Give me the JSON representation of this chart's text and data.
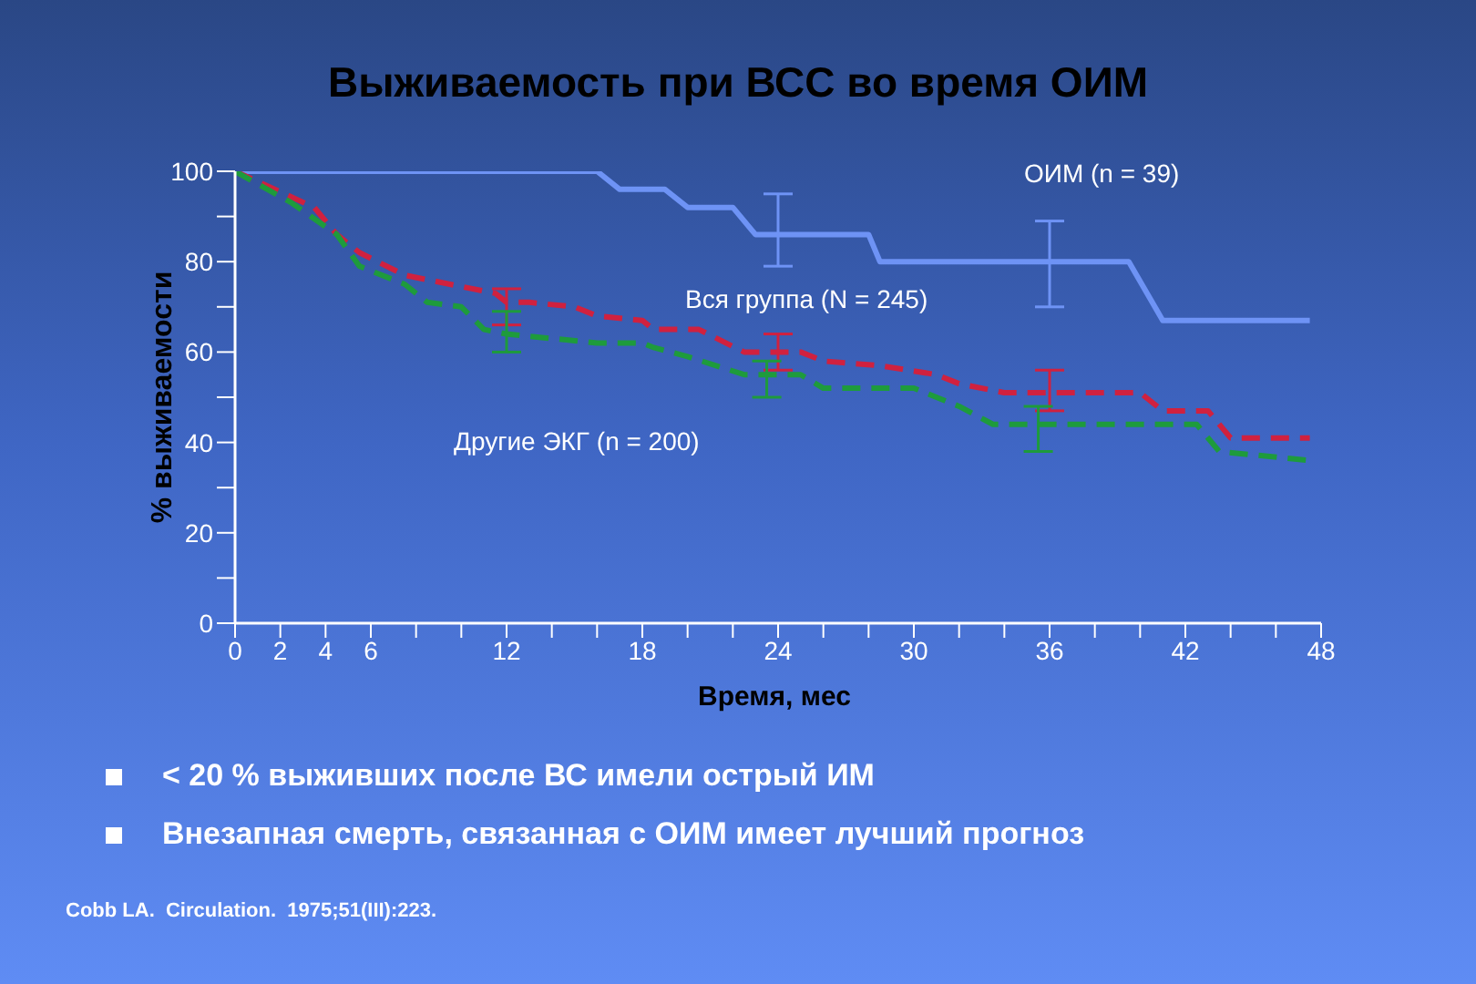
{
  "chart_data": {
    "type": "line",
    "title": "Выживаемость при ВСС во время ОИМ",
    "xlabel": "Время, мес",
    "ylabel": "% выживаемости",
    "xlim": [
      0,
      48
    ],
    "ylim": [
      0,
      100
    ],
    "xticks": [
      0,
      2,
      4,
      6,
      {
        "value": 8,
        "label": null
      },
      {
        "value": 10,
        "label": null
      },
      12,
      {
        "value": 14,
        "label": null
      },
      {
        "value": 16,
        "label": null
      },
      18,
      {
        "value": 20,
        "label": null
      },
      {
        "value": 22,
        "label": null
      },
      24,
      {
        "value": 26,
        "label": null
      },
      {
        "value": 28,
        "label": null
      },
      30,
      {
        "value": 32,
        "label": null
      },
      {
        "value": 34,
        "label": null
      },
      36,
      {
        "value": 38,
        "label": null
      },
      {
        "value": 40,
        "label": null
      },
      42,
      {
        "value": 44,
        "label": null
      },
      {
        "value": 46,
        "label": null
      },
      48
    ],
    "yticks": [
      0,
      {
        "value": 10,
        "label": null
      },
      20,
      {
        "value": 30,
        "label": null
      },
      40,
      {
        "value": 50,
        "label": null
      },
      60,
      {
        "value": 70,
        "label": null
      },
      80,
      {
        "value": 90,
        "label": null
      },
      100
    ],
    "grid": false,
    "legend": false,
    "marker": "none",
    "series": [
      {
        "name": "ОИМ (n = 39)",
        "color": "#6e93f5",
        "line_style": "solid",
        "x": [
          0,
          16,
          17,
          19,
          20,
          22,
          23,
          24,
          28,
          28.5,
          36,
          39.5,
          41,
          47.5
        ],
        "values": [
          100,
          100,
          96,
          96,
          92,
          92,
          86,
          86,
          86,
          80,
          80,
          80,
          67,
          67
        ],
        "errors": [
          null,
          null,
          null,
          null,
          null,
          null,
          null,
          [
            79,
            95
          ],
          null,
          null,
          [
            70,
            89
          ],
          null,
          null,
          null
        ]
      },
      {
        "name": "Вся группа (N = 245)",
        "color": "#d0213f",
        "line_style": "dashed",
        "x": [
          0,
          3.5,
          4.5,
          5.5,
          7.5,
          9.5,
          11.5,
          12,
          13,
          15,
          16,
          18,
          18.5,
          20.5,
          22.5,
          24,
          25,
          26,
          28.5,
          31,
          32,
          34,
          36,
          40,
          41,
          43,
          44,
          47.5
        ],
        "values": [
          100,
          92,
          86,
          82,
          77,
          75,
          73,
          71,
          71,
          70,
          68,
          67,
          65,
          65,
          60,
          60,
          60,
          58,
          57,
          55,
          53,
          51,
          51,
          51,
          47,
          47,
          41,
          41
        ],
        "errors": [
          null,
          null,
          null,
          null,
          null,
          null,
          null,
          [
            66,
            74
          ],
          null,
          null,
          null,
          null,
          null,
          null,
          null,
          [
            56,
            64
          ],
          null,
          null,
          null,
          null,
          null,
          null,
          [
            47,
            56
          ],
          null,
          null,
          null,
          null,
          null
        ]
      },
      {
        "name": "Другие ЭКГ (n = 200)",
        "color": "#1e9b3c",
        "line_style": "dashed",
        "x": [
          0,
          2.5,
          4.5,
          5.5,
          7.5,
          8.5,
          10,
          11,
          12,
          14,
          16,
          18,
          18.5,
          20,
          22.5,
          23.5,
          25,
          26,
          30,
          32,
          33.5,
          35.5,
          42.5,
          43.5,
          47.5
        ],
        "values": [
          100,
          93,
          86,
          79,
          75,
          71,
          70,
          65,
          64,
          63,
          62,
          62,
          61,
          59,
          55,
          55,
          55,
          52,
          52,
          48,
          44,
          44,
          44,
          38,
          36
        ],
        "errors": [
          null,
          null,
          null,
          null,
          null,
          null,
          null,
          null,
          [
            60,
            69
          ],
          null,
          null,
          null,
          null,
          null,
          null,
          [
            50,
            58
          ],
          null,
          null,
          null,
          null,
          null,
          [
            38,
            48
          ],
          null,
          null,
          null
        ]
      }
    ],
    "annotations": [
      "< 20 % выживших после ВС имели острый ИМ",
      "Внезапная смерть, связанная с ОИМ имеет лучший прогноз",
      "Cobb LA.  Circulation.  1975;51(III):223."
    ]
  }
}
